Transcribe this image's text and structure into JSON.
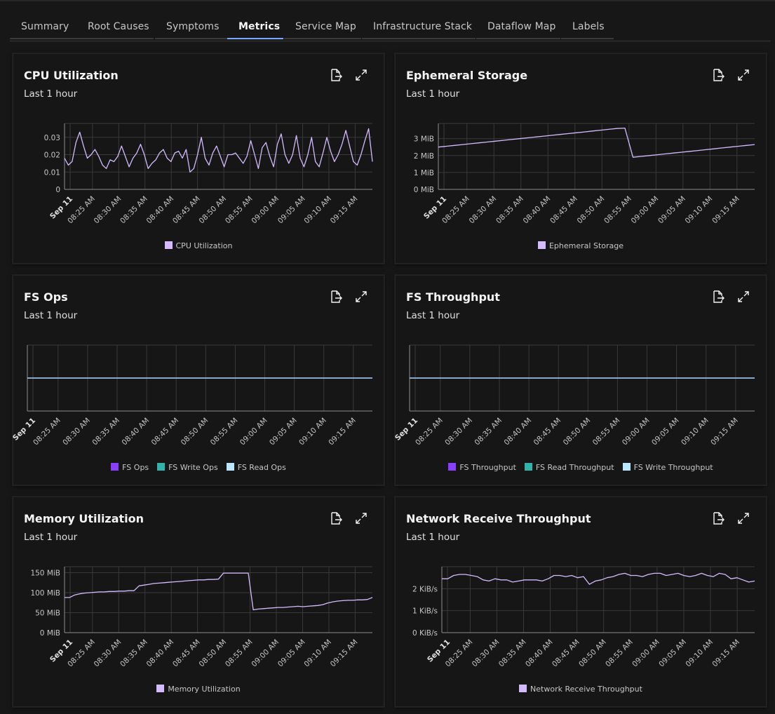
{
  "tabs": [
    {
      "label": "Summary",
      "active": false
    },
    {
      "label": "Root Causes",
      "active": false
    },
    {
      "label": "Symptoms",
      "active": false
    },
    {
      "label": "Metrics",
      "active": true
    },
    {
      "label": "Service Map",
      "active": false
    },
    {
      "label": "Infrastructure Stack",
      "active": false
    },
    {
      "label": "Dataflow Map",
      "active": false
    },
    {
      "label": "Labels",
      "active": false
    }
  ],
  "colors": {
    "accent": "#78a9ff",
    "line_primary": "#d4bbff",
    "line_secondary": "#08bdba",
    "line_tertiary": "#bae6ff",
    "legend_purple": "#8a3ffc"
  },
  "cards": [
    {
      "title": "CPU Utilization",
      "subtitle": "Last 1 hour",
      "export_icon": "export-icon",
      "expand_icon": "maximize-icon",
      "legend": [
        {
          "label": "CPU Utilization",
          "color": "#d4bbff"
        }
      ]
    },
    {
      "title": "Ephemeral Storage",
      "subtitle": "Last 1 hour",
      "export_icon": "export-icon",
      "expand_icon": "maximize-icon",
      "legend": [
        {
          "label": "Ephemeral Storage",
          "color": "#d4bbff"
        }
      ]
    },
    {
      "title": "FS Ops",
      "subtitle": "Last 1 hour",
      "export_icon": "export-icon",
      "expand_icon": "maximize-icon",
      "legend": [
        {
          "label": "FS Ops",
          "color": "#8a3ffc"
        },
        {
          "label": "FS Write Ops",
          "color": "#33b1ab"
        },
        {
          "label": "FS Read Ops",
          "color": "#bae6ff"
        }
      ]
    },
    {
      "title": "FS Throughput",
      "subtitle": "Last 1 hour",
      "export_icon": "export-icon",
      "expand_icon": "maximize-icon",
      "legend": [
        {
          "label": "FS Throughput",
          "color": "#8a3ffc"
        },
        {
          "label": "FS Read Throughput",
          "color": "#33b1ab"
        },
        {
          "label": "FS Write Throughput",
          "color": "#bae6ff"
        }
      ]
    },
    {
      "title": "Memory Utilization",
      "subtitle": "Last 1 hour",
      "export_icon": "export-icon",
      "expand_icon": "maximize-icon",
      "legend": [
        {
          "label": "Memory Utilization",
          "color": "#d4bbff"
        }
      ]
    },
    {
      "title": "Network Receive Throughput",
      "subtitle": "Last 1 hour",
      "export_icon": "export-icon",
      "expand_icon": "maximize-icon",
      "legend": [
        {
          "label": "Network Receive Throughput",
          "color": "#d4bbff"
        }
      ]
    }
  ],
  "chart_data": [
    {
      "type": "line",
      "title": "CPU Utilization",
      "x_ticks": [
        "Sep 11",
        "08:25 AM",
        "08:30 AM",
        "08:35 AM",
        "08:40 AM",
        "08:45 AM",
        "08:50 AM",
        "08:55 AM",
        "09:00 AM",
        "09:05 AM",
        "09:10 AM",
        "09:15 AM"
      ],
      "y_ticks": [
        "0",
        "0.01",
        "0.02",
        "0.03"
      ],
      "ylim": [
        0,
        0.038
      ],
      "x_range_min": [
        19,
        79
      ],
      "series": [
        {
          "name": "CPU Utilization",
          "color": "#d4bbff",
          "values": [
            0.018,
            0.014,
            0.016,
            0.027,
            0.033,
            0.025,
            0.018,
            0.02,
            0.023,
            0.019,
            0.014,
            0.012,
            0.017,
            0.016,
            0.019,
            0.025,
            0.019,
            0.013,
            0.018,
            0.021,
            0.026,
            0.02,
            0.012,
            0.015,
            0.017,
            0.021,
            0.023,
            0.018,
            0.016,
            0.021,
            0.022,
            0.018,
            0.023,
            0.01,
            0.012,
            0.02,
            0.03,
            0.018,
            0.014,
            0.021,
            0.025,
            0.019,
            0.013,
            0.02,
            0.02,
            0.021,
            0.018,
            0.015,
            0.019,
            0.028,
            0.02,
            0.012,
            0.024,
            0.027,
            0.019,
            0.013,
            0.026,
            0.032,
            0.02,
            0.015,
            0.02,
            0.031,
            0.018,
            0.013,
            0.02,
            0.03,
            0.016,
            0.013,
            0.021,
            0.03,
            0.022,
            0.016,
            0.02,
            0.026,
            0.034,
            0.025,
            0.016,
            0.014,
            0.02,
            0.028,
            0.035,
            0.016
          ]
        }
      ]
    },
    {
      "type": "line",
      "title": "Ephemeral Storage",
      "x_ticks": [
        "Sep 11",
        "08:25 AM",
        "08:30 AM",
        "08:35 AM",
        "08:40 AM",
        "08:45 AM",
        "08:50 AM",
        "08:55 AM",
        "09:00 AM",
        "09:05 AM",
        "09:10 AM",
        "09:15 AM"
      ],
      "y_ticks": [
        "0 MiB",
        "1 MiB",
        "2 MiB",
        "3 MiB"
      ],
      "ylim": [
        0,
        3.9
      ],
      "x_range_min": [
        19,
        79
      ],
      "series": [
        {
          "name": "Ephemeral Storage",
          "color": "#d4bbff",
          "values": [
            2.5,
            2.55,
            2.6,
            2.65,
            2.7,
            2.75,
            2.8,
            2.85,
            2.9,
            2.95,
            3.0,
            3.05,
            3.1,
            3.15,
            3.2,
            3.25,
            3.3,
            3.35,
            3.4,
            3.45,
            3.5,
            3.55,
            3.6,
            3.62,
            1.9,
            1.95,
            2.0,
            2.05,
            2.1,
            2.15,
            2.2,
            2.25,
            2.3,
            2.35,
            2.4,
            2.45,
            2.5,
            2.55,
            2.6,
            2.65
          ]
        }
      ]
    },
    {
      "type": "line",
      "title": "FS Ops",
      "x_ticks": [
        "Sep 11",
        "08:25 AM",
        "08:30 AM",
        "08:35 AM",
        "08:40 AM",
        "08:45 AM",
        "08:50 AM",
        "08:55 AM",
        "09:00 AM",
        "09:05 AM",
        "09:10 AM",
        "09:15 AM"
      ],
      "y_ticks": [],
      "ylim": [
        -1,
        1
      ],
      "x_range_min": [
        19,
        79
      ],
      "series": [
        {
          "name": "FS Ops",
          "color": "#8a3ffc",
          "values": [
            0,
            0
          ]
        },
        {
          "name": "FS Write Ops",
          "color": "#33b1ab",
          "values": [
            0,
            0
          ]
        },
        {
          "name": "FS Read Ops",
          "color": "#bae6ff",
          "values": [
            0,
            0
          ]
        }
      ]
    },
    {
      "type": "line",
      "title": "FS Throughput",
      "x_ticks": [
        "Sep 11",
        "08:25 AM",
        "08:30 AM",
        "08:35 AM",
        "08:40 AM",
        "08:45 AM",
        "08:50 AM",
        "08:55 AM",
        "09:00 AM",
        "09:05 AM",
        "09:10 AM",
        "09:15 AM"
      ],
      "y_ticks": [],
      "ylim": [
        -1,
        1
      ],
      "x_range_min": [
        19,
        79
      ],
      "series": [
        {
          "name": "FS Throughput",
          "color": "#8a3ffc",
          "values": [
            0,
            0
          ]
        },
        {
          "name": "FS Read Throughput",
          "color": "#33b1ab",
          "values": [
            0,
            0
          ]
        },
        {
          "name": "FS Write Throughput",
          "color": "#bae6ff",
          "values": [
            0,
            0
          ]
        }
      ]
    },
    {
      "type": "line",
      "title": "Memory Utilization",
      "x_ticks": [
        "Sep 11",
        "08:25 AM",
        "08:30 AM",
        "08:35 AM",
        "08:40 AM",
        "08:45 AM",
        "08:50 AM",
        "08:55 AM",
        "09:00 AM",
        "09:05 AM",
        "09:10 AM",
        "09:15 AM"
      ],
      "y_ticks": [
        "0 MiB",
        "50 MiB",
        "100 MiB",
        "150 MiB"
      ],
      "ylim": [
        0,
        165
      ],
      "x_range_min": [
        19,
        79
      ],
      "series": [
        {
          "name": "Memory Utilization",
          "color": "#d4bbff",
          "values": [
            88,
            88,
            94,
            97,
            99,
            100,
            101,
            102,
            102,
            103,
            103,
            104,
            104,
            105,
            105,
            117,
            119,
            121,
            123,
            124,
            125,
            126,
            127,
            128,
            129,
            130,
            131,
            132,
            132,
            133,
            133,
            134,
            149,
            149,
            149,
            149,
            149,
            149,
            57,
            59,
            60,
            61,
            62,
            63,
            63,
            64,
            65,
            66,
            65,
            66,
            67,
            68,
            70,
            74,
            77,
            79,
            80,
            81,
            81,
            82,
            82,
            83,
            88
          ]
        }
      ]
    },
    {
      "type": "line",
      "title": "Network Receive Throughput",
      "x_ticks": [
        "Sep 11",
        "08:25 AM",
        "08:30 AM",
        "08:35 AM",
        "08:40 AM",
        "08:45 AM",
        "08:50 AM",
        "08:55 AM",
        "09:00 AM",
        "09:05 AM",
        "09:10 AM",
        "09:15 AM"
      ],
      "y_ticks": [
        "0 KiB/s",
        "1 KiB/s",
        "2 KiB/s"
      ],
      "ylim": [
        0,
        3.0
      ],
      "x_range_min": [
        19,
        79
      ],
      "series": [
        {
          "name": "Network Receive Throughput",
          "color": "#d4bbff",
          "values": [
            2.45,
            2.45,
            2.6,
            2.65,
            2.65,
            2.6,
            2.55,
            2.4,
            2.35,
            2.45,
            2.4,
            2.4,
            2.3,
            2.35,
            2.4,
            2.4,
            2.4,
            2.35,
            2.45,
            2.6,
            2.6,
            2.55,
            2.6,
            2.5,
            2.55,
            2.2,
            2.35,
            2.4,
            2.5,
            2.55,
            2.65,
            2.7,
            2.6,
            2.6,
            2.55,
            2.65,
            2.7,
            2.7,
            2.6,
            2.65,
            2.7,
            2.6,
            2.55,
            2.6,
            2.7,
            2.6,
            2.55,
            2.7,
            2.65,
            2.45,
            2.5,
            2.4,
            2.3,
            2.35
          ]
        }
      ]
    }
  ]
}
